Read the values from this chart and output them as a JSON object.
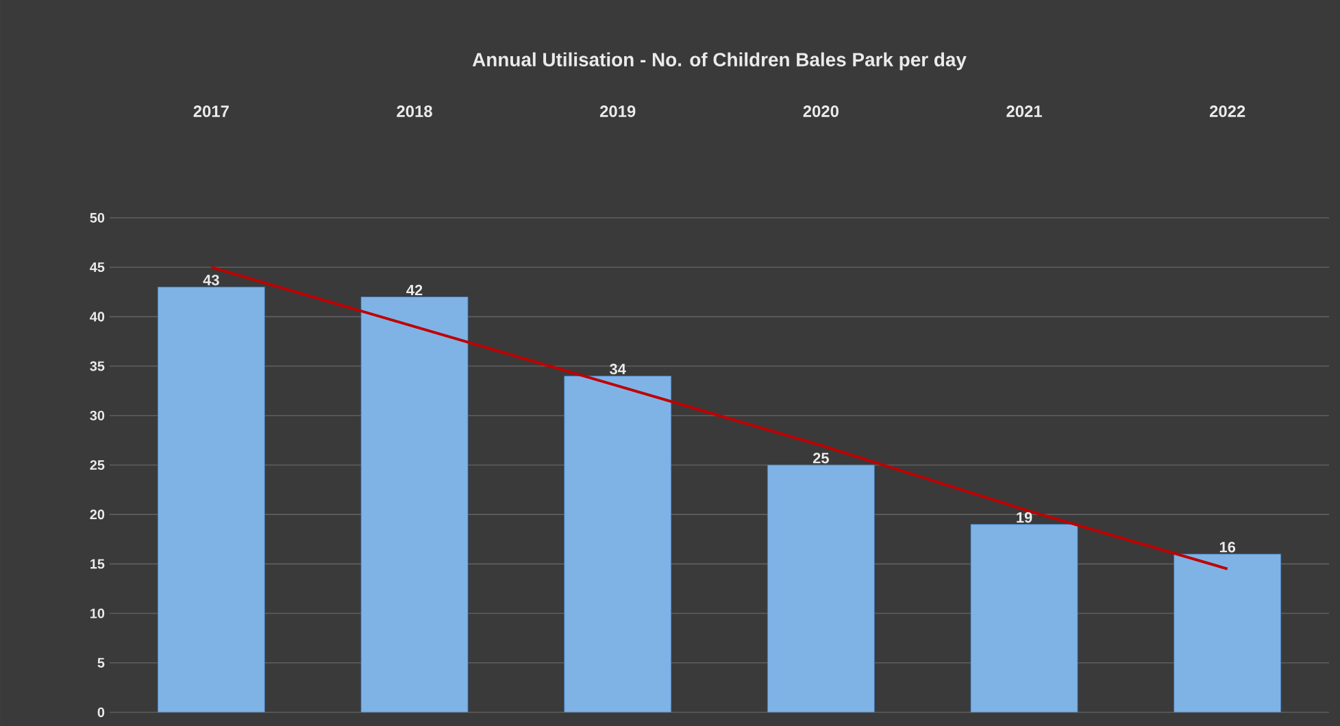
{
  "chart_data": {
    "type": "bar",
    "title": "Annual Utilisation - No. of Children Bales Park per day",
    "categories": [
      "2017",
      "2018",
      "2019",
      "2020",
      "2021",
      "2022"
    ],
    "series": [
      {
        "color": "#7fb3e6",
        "values": [
          43,
          42,
          34,
          25,
          19,
          16
        ],
        "value_labels": [
          "43",
          "42",
          "34",
          "25",
          "19",
          "16"
        ]
      },
      {
        "type": "line",
        "color": "#c00000",
        "values": [
          45,
          39,
          33,
          27,
          20.5,
          14.5
        ],
        "marker": "none"
      }
    ],
    "ylim": [
      0,
      50
    ],
    "yticks": [
      0,
      5,
      10,
      15,
      20,
      25,
      30,
      35,
      40,
      45,
      50
    ],
    "grid": "y"
  }
}
